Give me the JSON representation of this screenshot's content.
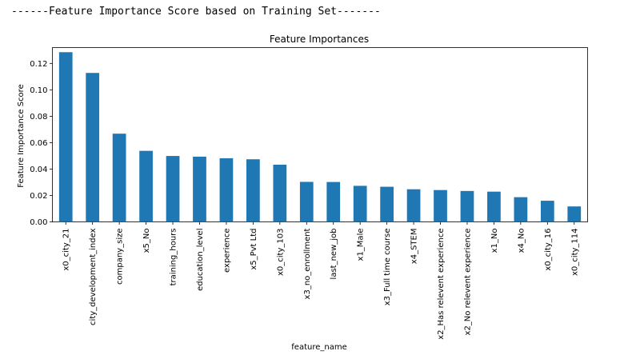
{
  "console": {
    "header_line": "------Feature Importance Score based on Training Set-------"
  },
  "chart_data": {
    "type": "bar",
    "title": "Feature Importances",
    "xlabel": "feature_name",
    "ylabel": "Feature Importance Score",
    "ylim": [
      0,
      0.132
    ],
    "yticks": [
      0.0,
      0.02,
      0.04,
      0.06,
      0.08,
      0.1,
      0.12
    ],
    "ytick_labels": [
      "0.00",
      "0.02",
      "0.04",
      "0.06",
      "0.08",
      "0.10",
      "0.12"
    ],
    "bar_color": "#1f77b4",
    "grid": false,
    "categories": [
      "x0_city_21",
      "city_development_index",
      "company_size",
      "x5_No",
      "training_hours",
      "education_level",
      "experience",
      "x5_Pvt Ltd",
      "x0_city_103",
      "x3_no_enrollment",
      "last_new_job",
      "x1_Male",
      "x3_Full time course",
      "x4_STEM",
      "x2_Has relevent experience",
      "x2_No relevent experience",
      "x1_No",
      "x4_No",
      "x0_city_16",
      "x0_city_114"
    ],
    "values": [
      0.1285,
      0.1128,
      0.0668,
      0.0538,
      0.0499,
      0.0494,
      0.0482,
      0.0474,
      0.0433,
      0.0303,
      0.0302,
      0.0273,
      0.0266,
      0.0247,
      0.0241,
      0.0234,
      0.0229,
      0.0187,
      0.016,
      0.0117
    ]
  }
}
